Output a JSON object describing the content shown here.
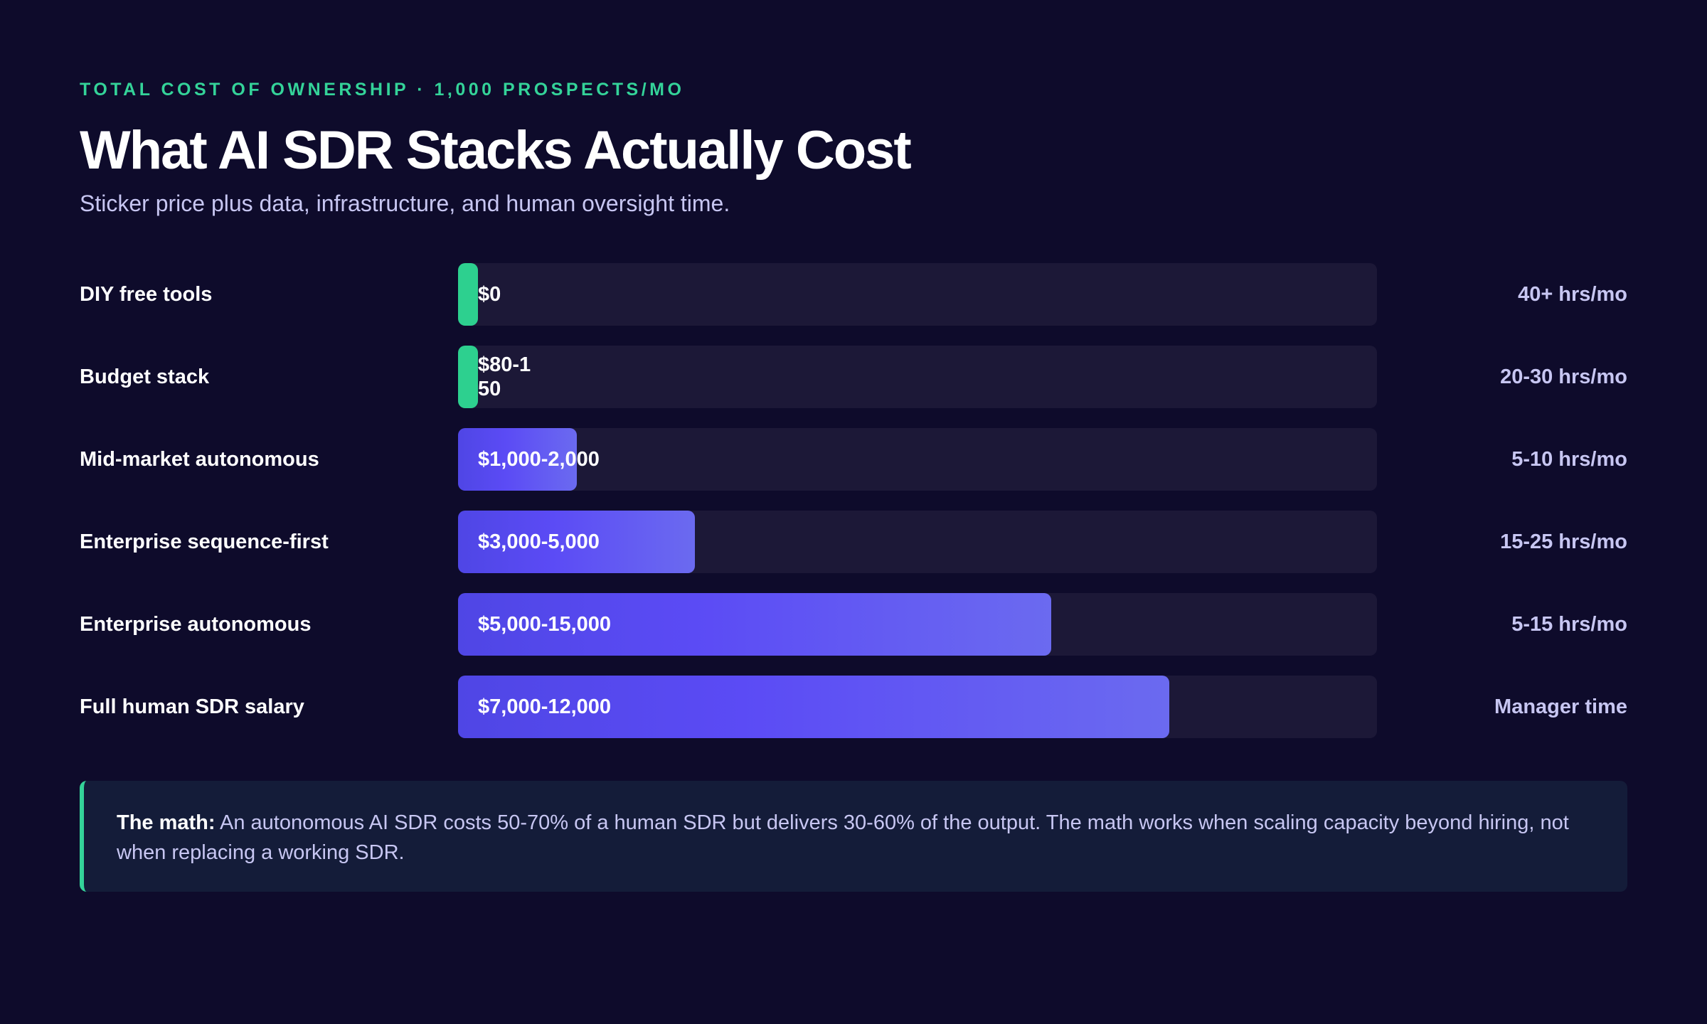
{
  "header": {
    "eyebrow": "TOTAL COST OF OWNERSHIP · 1,000 PROSPECTS/MO",
    "title": "What AI SDR Stacks Actually Cost",
    "subtitle": "Sticker price plus data, infrastructure, and human oversight time."
  },
  "colors": {
    "background": "#0e0b2b",
    "accent_green": "#34d399",
    "bar_green": "#2dd08f",
    "bar_purple_start": "#4f46e5",
    "bar_purple_end": "#6b6af0",
    "track": "#1c1837",
    "muted_text": "#c7c6f2"
  },
  "chart_data": {
    "type": "bar",
    "orientation": "horizontal",
    "title": "What AI SDR Stacks Actually Cost",
    "subtitle": "Sticker price plus data, infrastructure, and human oversight time.",
    "xlim": [
      0,
      15500
    ],
    "grid": false,
    "categories": [
      "DIY free tools",
      "Budget stack",
      "Mid-market autonomous",
      "Enterprise sequence-first",
      "Enterprise autonomous",
      "Full human SDR salary"
    ],
    "values": [
      0,
      150,
      2000,
      4000,
      10000,
      12000
    ],
    "value_labels": [
      "$0",
      "$80-150",
      "$1,000-2,000",
      "$3,000-5,000",
      "$5,000-15,000",
      "$7,000-12,000"
    ],
    "bar_colors": [
      "green",
      "green",
      "purple",
      "purple",
      "purple",
      "purple"
    ],
    "hours_labels": [
      "40+ hrs/mo",
      "20-30 hrs/mo",
      "5-10 hrs/mo",
      "15-25 hrs/mo",
      "5-15 hrs/mo",
      "Manager time"
    ]
  },
  "callout": {
    "lead": "The math:",
    "text": " An autonomous AI SDR costs 50-70% of a human SDR but delivers 30-60% of the output. The math works when scaling capacity beyond hiring, not when replacing a working SDR."
  }
}
